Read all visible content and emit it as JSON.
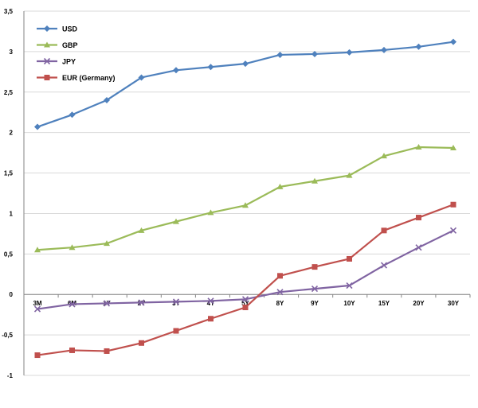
{
  "chart_data": {
    "type": "line",
    "title": "",
    "xlabel": "",
    "ylabel": "",
    "categories": [
      "3M",
      "6M",
      "1Y",
      "2Y",
      "3Y",
      "4Y",
      "5Y",
      "8Y",
      "9Y",
      "10Y",
      "15Y",
      "20Y",
      "30Y"
    ],
    "ylim": [
      -1,
      3.5
    ],
    "yticks": [
      -1,
      -0.5,
      0,
      0.5,
      1,
      1.5,
      2,
      2.5,
      3,
      3.5
    ],
    "ytick_labels": [
      "-1",
      "-0,5",
      "0",
      "0,5",
      "1",
      "1,5",
      "2",
      "2,5",
      "3",
      "3,5"
    ],
    "grid": "horizontal",
    "legend_position": "top-left",
    "series": [
      {
        "name": "USD",
        "color": "#4F81BD",
        "marker": "diamond",
        "values": [
          2.07,
          2.22,
          2.4,
          2.68,
          2.77,
          2.81,
          2.85,
          2.96,
          2.97,
          2.99,
          3.02,
          3.06,
          3.12
        ]
      },
      {
        "name": "GBP",
        "color": "#9BBB59",
        "marker": "triangle",
        "values": [
          0.55,
          0.58,
          0.63,
          0.79,
          0.9,
          1.01,
          1.1,
          1.33,
          1.4,
          1.47,
          1.71,
          1.82,
          1.81
        ]
      },
      {
        "name": "JPY",
        "color": "#8064A2",
        "marker": "x",
        "values": [
          -0.18,
          -0.12,
          -0.11,
          -0.1,
          -0.09,
          -0.08,
          -0.06,
          0.03,
          0.07,
          0.11,
          0.36,
          0.58,
          0.79
        ]
      },
      {
        "name": "EUR (Germany)",
        "color": "#C0504D",
        "marker": "square",
        "values": [
          -0.75,
          -0.69,
          -0.7,
          -0.6,
          -0.45,
          -0.3,
          -0.16,
          0.23,
          0.34,
          0.44,
          0.79,
          0.95,
          1.11
        ]
      }
    ]
  }
}
